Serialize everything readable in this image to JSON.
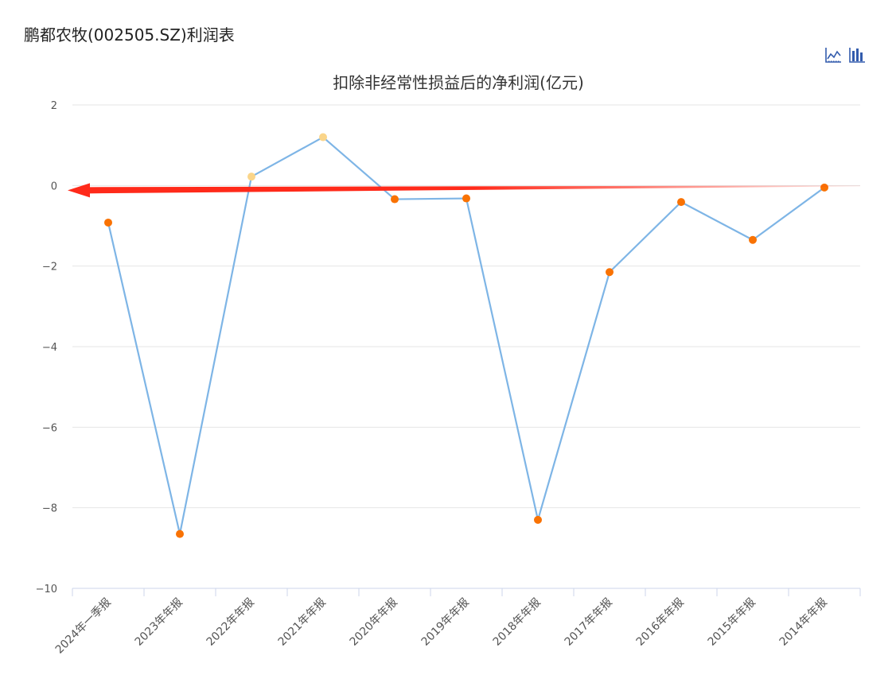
{
  "page": {
    "title": "鹏都农牧(002505.SZ)利润表"
  },
  "toolbar": {
    "icons": [
      "line-chart-icon",
      "bar-chart-icon"
    ]
  },
  "chart_data": {
    "type": "line",
    "title": "扣除非经常性损益后的净利润(亿元)",
    "xlabel": "",
    "ylabel": "",
    "categories": [
      "2024年一季报",
      "2023年年报",
      "2022年年报",
      "2021年年报",
      "2020年年报",
      "2019年年报",
      "2018年年报",
      "2017年年报",
      "2016年年报",
      "2015年年报",
      "2014年年报"
    ],
    "series": [
      {
        "values": [
          -0.92,
          -8.65,
          0.22,
          1.2,
          -0.34,
          -0.32,
          -8.3,
          -2.15,
          -0.41,
          -1.35,
          -0.05
        ]
      }
    ],
    "ylim": [
      -10,
      2
    ],
    "yticks": [
      2,
      0,
      -2,
      -4,
      -6,
      -8,
      -10
    ],
    "grid": true,
    "legend": "none",
    "colors": {
      "line": "#7eb5e6",
      "negative_point": "#f97203",
      "positive_point": "#fad58a",
      "arrow": "#ff2a1a",
      "grid": "#e6e6e6",
      "axis": "#ccd6eb",
      "tool_icon": "#335cad"
    }
  }
}
